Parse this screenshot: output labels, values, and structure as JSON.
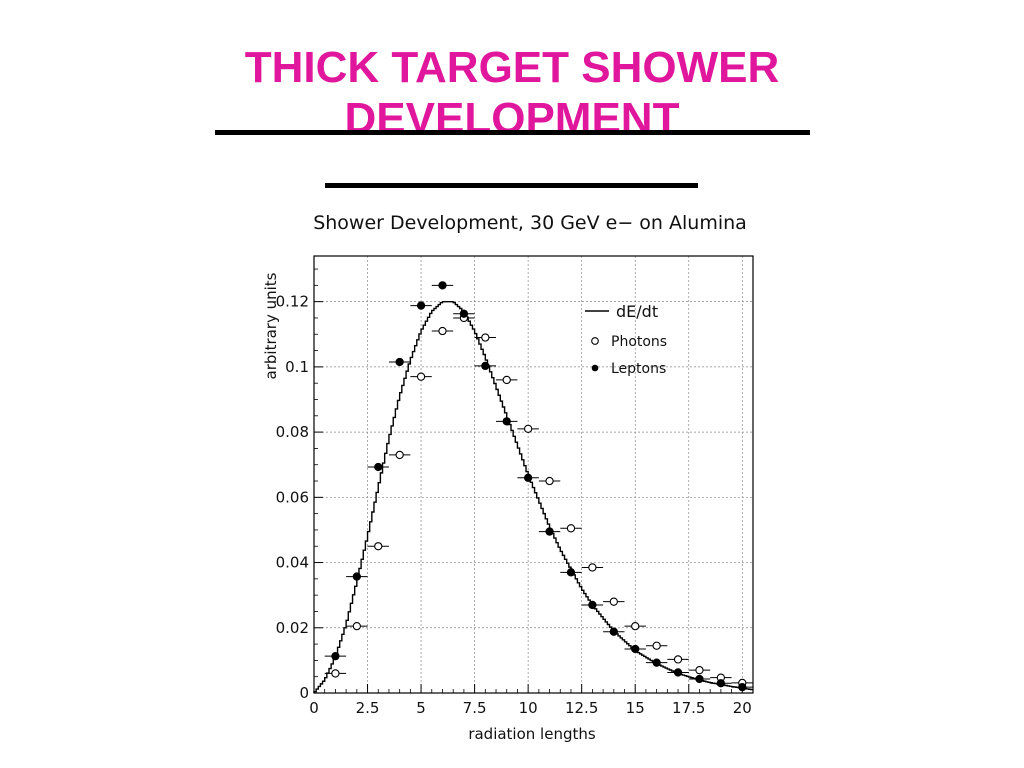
{
  "slide": {
    "title_line1": "THICK TARGET SHOWER",
    "title_line2": "DEVELOPMENT",
    "title_color": "#e0169c"
  },
  "chart_data": {
    "type": "scatter",
    "title": "Shower Development, 30 GeV e− on Alumina",
    "xlabel": "radiation lengths",
    "ylabel": "arbitrary units",
    "xlim": [
      0,
      20.5
    ],
    "ylim": [
      0,
      0.134
    ],
    "x_ticks": [
      0,
      2.5,
      5,
      7.5,
      10,
      12.5,
      15,
      17.5,
      20
    ],
    "x_tick_labels": [
      "0",
      "2.5",
      "5",
      "7.5",
      "10",
      "12.5",
      "15",
      "17.5",
      "20"
    ],
    "y_ticks": [
      0,
      0.02,
      0.04,
      0.06,
      0.08,
      0.1,
      0.12
    ],
    "y_tick_labels": [
      "0",
      "0.02",
      "0.04",
      "0.06",
      "0.08",
      "0.1",
      "0.12"
    ],
    "grid": true,
    "legend_position": "top-right",
    "series": [
      {
        "name": "dE/dt",
        "kind": "histogram-line",
        "x": [
          0,
          0.5,
          1,
          1.5,
          2,
          2.5,
          3,
          3.5,
          4,
          4.5,
          5,
          5.5,
          6,
          6.5,
          7,
          7.5,
          8,
          8.5,
          9,
          9.5,
          10,
          10.5,
          11,
          11.5,
          12,
          12.5,
          13,
          13.5,
          14,
          14.5,
          15,
          15.5,
          16,
          16.5,
          17,
          17.5,
          18,
          18.5,
          19,
          19.5,
          20,
          20.5
        ],
        "y": [
          0,
          0.004,
          0.011,
          0.021,
          0.034,
          0.048,
          0.063,
          0.078,
          0.091,
          0.102,
          0.111,
          0.117,
          0.12,
          0.12,
          0.117,
          0.111,
          0.103,
          0.094,
          0.085,
          0.076,
          0.067,
          0.059,
          0.051,
          0.044,
          0.038,
          0.032,
          0.027,
          0.023,
          0.019,
          0.016,
          0.013,
          0.011,
          0.009,
          0.0075,
          0.006,
          0.005,
          0.004,
          0.0032,
          0.0026,
          0.002,
          0.0015,
          0.001
        ]
      },
      {
        "name": "Photons",
        "kind": "open-circles",
        "x": [
          1,
          2,
          3,
          4,
          5,
          6,
          7,
          8,
          9,
          10,
          11,
          12,
          13,
          14,
          15,
          16,
          17,
          18,
          19,
          20
        ],
        "y": [
          0.006,
          0.0205,
          0.045,
          0.073,
          0.097,
          0.111,
          0.115,
          0.109,
          0.096,
          0.081,
          0.065,
          0.0505,
          0.0385,
          0.028,
          0.0205,
          0.0145,
          0.0103,
          0.007,
          0.0047,
          0.0031
        ]
      },
      {
        "name": "Leptons",
        "kind": "filled-circles",
        "x": [
          1,
          2,
          3,
          4,
          5,
          6,
          7,
          8,
          9,
          10,
          11,
          12,
          13,
          14,
          15,
          16,
          17,
          18,
          19,
          20
        ],
        "y": [
          0.0113,
          0.0357,
          0.0693,
          0.1015,
          0.1188,
          0.125,
          0.1163,
          0.1003,
          0.0833,
          0.066,
          0.0495,
          0.037,
          0.027,
          0.0188,
          0.0135,
          0.0093,
          0.0063,
          0.0043,
          0.003,
          0.0018
        ]
      }
    ]
  }
}
